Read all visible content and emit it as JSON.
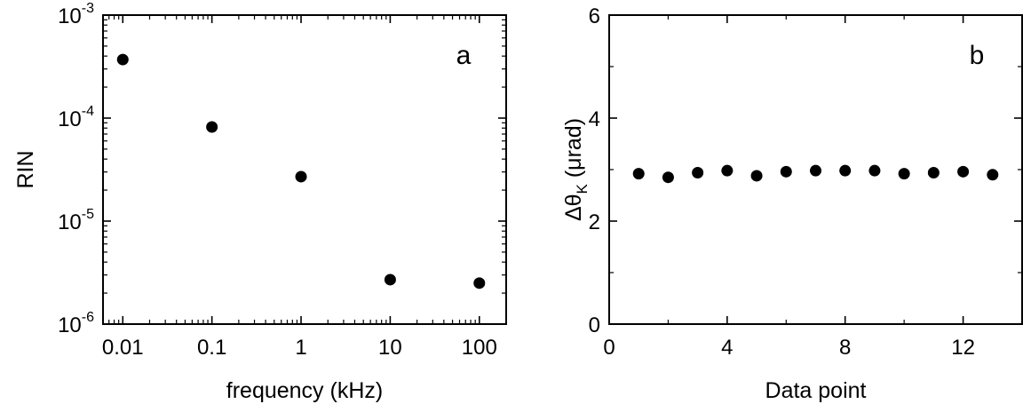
{
  "chart_data": [
    {
      "type": "scatter",
      "panel_label": "a",
      "xlabel": "frequency (kHz)",
      "ylabel": "RIN",
      "xscale": "log",
      "yscale": "log",
      "xlim": [
        0.006,
        200
      ],
      "ylim": [
        1e-06,
        0.001
      ],
      "xticks": [
        0.01,
        0.1,
        1,
        10,
        100
      ],
      "xtick_labels": [
        "0.01",
        "0.1",
        "1",
        "10",
        "100"
      ],
      "yticks": [
        1e-06,
        1e-05,
        0.0001,
        0.001
      ],
      "ytick_labels": [
        {
          "base": "10",
          "exp": "-6"
        },
        {
          "base": "10",
          "exp": "-5"
        },
        {
          "base": "10",
          "exp": "-4"
        },
        {
          "base": "10",
          "exp": "-3"
        }
      ],
      "grid": false,
      "series": [
        {
          "points": [
            [
              0.01,
              0.00037
            ],
            [
              0.1,
              8.2e-05
            ],
            [
              1,
              2.7e-05
            ],
            [
              10,
              2.7e-06
            ],
            [
              100,
              2.5e-06
            ]
          ]
        }
      ]
    },
    {
      "type": "scatter",
      "panel_label": "b",
      "xlabel": "Data point",
      "ylabel": {
        "prefix": "Δθ",
        "sub": "K",
        "suffix": " (μrad)"
      },
      "xscale": "linear",
      "yscale": "linear",
      "xlim": [
        0,
        14
      ],
      "ylim": [
        0,
        6
      ],
      "xticks": [
        0,
        4,
        8,
        12
      ],
      "xtick_labels": [
        "0",
        "4",
        "8",
        "12"
      ],
      "yticks": [
        0,
        2,
        4,
        6
      ],
      "ytick_labels": [
        "0",
        "2",
        "4",
        "6"
      ],
      "grid": false,
      "series": [
        {
          "points": [
            [
              1,
              2.92
            ],
            [
              2,
              2.85
            ],
            [
              3,
              2.94
            ],
            [
              4,
              2.98
            ],
            [
              5,
              2.88
            ],
            [
              6,
              2.96
            ],
            [
              7,
              2.98
            ],
            [
              8,
              2.98
            ],
            [
              9,
              2.98
            ],
            [
              10,
              2.92
            ],
            [
              11,
              2.94
            ],
            [
              12,
              2.96
            ],
            [
              13,
              2.9
            ]
          ]
        }
      ]
    }
  ]
}
